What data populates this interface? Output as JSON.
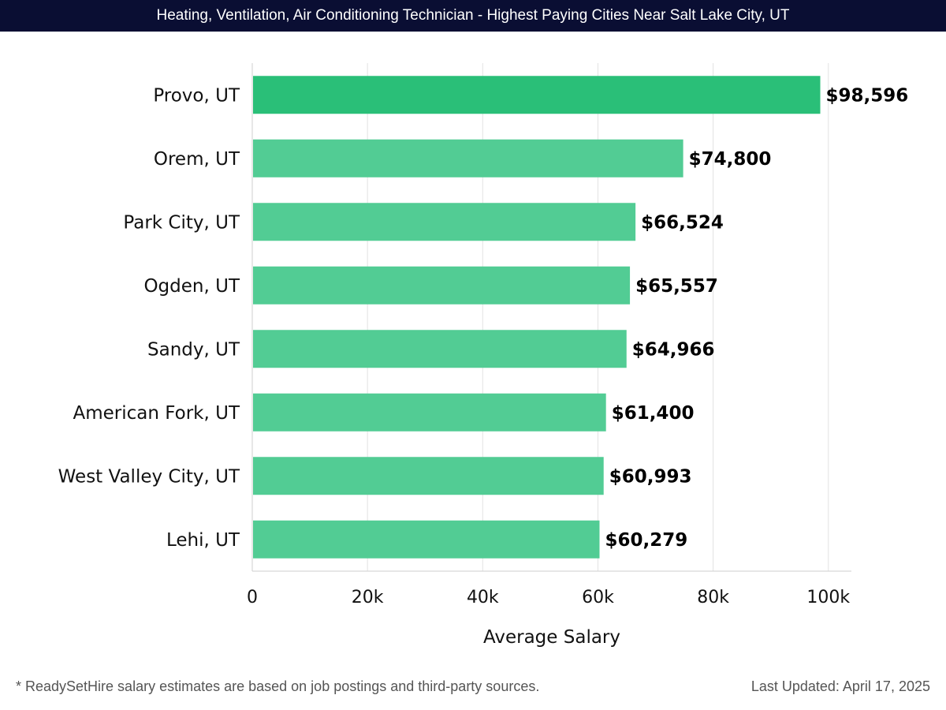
{
  "title": "Heating, Ventilation, Air Conditioning Technician - Highest Paying Cities Near Salt Lake City, UT",
  "footnote": "* ReadySetHire salary estimates are based on job postings and third-party sources.",
  "last_updated": "Last Updated: April 17, 2025",
  "colors": {
    "top_bar": "#2abf78",
    "bar": "#52cc94",
    "header_bg": "#0a0e33"
  },
  "chart_data": {
    "type": "bar",
    "orientation": "horizontal",
    "categories": [
      "Provo, UT",
      "Orem, UT",
      "Park City, UT",
      "Ogden, UT",
      "Sandy, UT",
      "American Fork, UT",
      "West Valley City, UT",
      "Lehi, UT"
    ],
    "values": [
      98596,
      74800,
      66524,
      65557,
      64966,
      61400,
      60993,
      60279
    ],
    "value_labels": [
      "$98,596",
      "$74,800",
      "$66,524",
      "$65,557",
      "$64,966",
      "$61,400",
      "$60,993",
      "$60,279"
    ],
    "xlabel": "Average Salary",
    "ylabel": "",
    "xlim": [
      0,
      104000
    ],
    "xticks": [
      0,
      20000,
      40000,
      60000,
      80000,
      100000
    ],
    "xtick_labels": [
      "0",
      "20k",
      "40k",
      "60k",
      "80k",
      "100k"
    ],
    "grid": "vertical"
  }
}
